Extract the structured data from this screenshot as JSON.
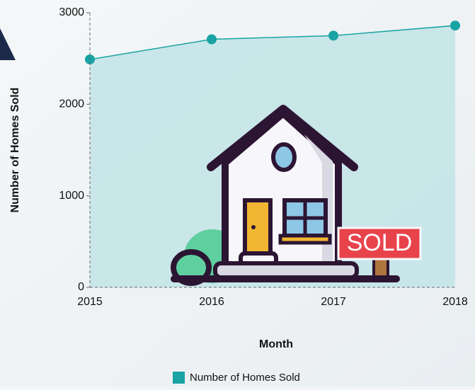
{
  "chart_data": {
    "type": "area",
    "x_label": "Month",
    "y_label": "Number of Homes Sold",
    "categories": [
      "2015",
      "2016",
      "2017",
      "2018"
    ],
    "series": [
      {
        "name": "Number of Homes Sold",
        "color": "#19a3a3",
        "fill": "#c4e4e8",
        "values": [
          2490,
          2710,
          2750,
          2860
        ]
      }
    ],
    "ylim": [
      0,
      3000
    ],
    "yticks": [
      0,
      1000,
      2000,
      3000
    ]
  }
}
